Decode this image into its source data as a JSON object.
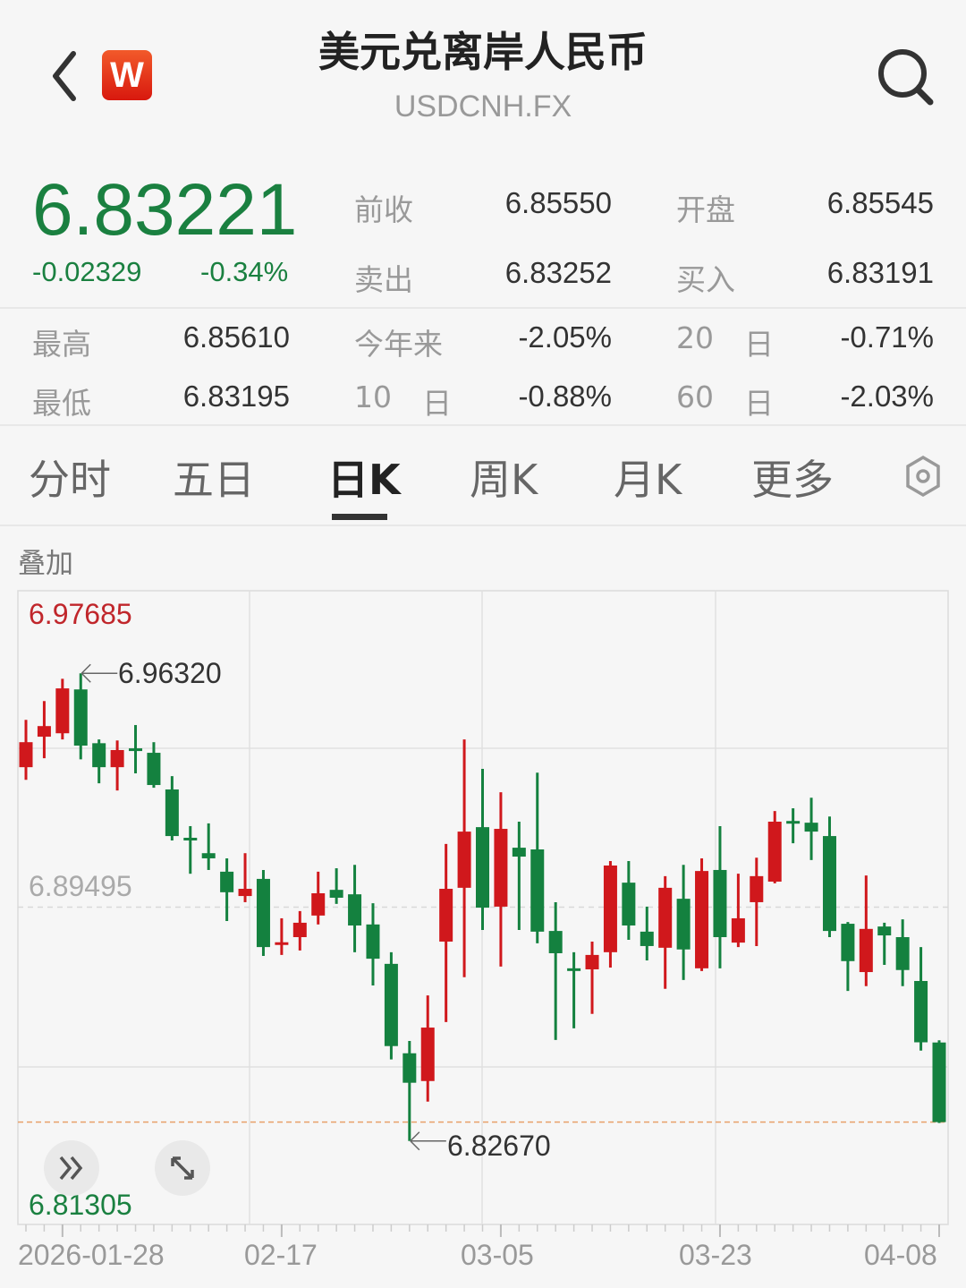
{
  "header": {
    "title": "美元兑离岸人民币",
    "symbol": "USDCNH.FX",
    "logo_text": "W",
    "back_icon": "chevron-left-icon",
    "search_icon": "search-icon"
  },
  "quote": {
    "last": "6.83221",
    "change": "-0.02329",
    "change_pct": "-0.34%",
    "prev_close_label": "前收",
    "prev_close": "6.85550",
    "open_label": "开盘",
    "open": "6.85545",
    "ask_label": "卖出",
    "ask": "6.83252",
    "bid_label": "买入",
    "bid": "6.83191",
    "high_label": "最高",
    "high": "6.85610",
    "low_label": "最低",
    "low": "6.83195",
    "ytd_label": "今年来",
    "ytd": "-2.05%",
    "d10_num": "10",
    "d10_unit": "日",
    "d10": "-0.88%",
    "d20_num": "20",
    "d20_unit": "日",
    "d20": "-0.71%",
    "d60_num": "60",
    "d60_unit": "日",
    "d60": "-2.03%"
  },
  "tabs": [
    {
      "label": "分时",
      "active": false
    },
    {
      "label": "五日",
      "active": false
    },
    {
      "label": "日K",
      "active": true
    },
    {
      "label": "周K",
      "active": false
    },
    {
      "label": "月K",
      "active": false
    },
    {
      "label": "更多",
      "active": false
    }
  ],
  "settings_icon": "hexagon-settings-icon",
  "overlay_label": "叠加",
  "colors": {
    "up": "#d0181c",
    "down": "#14813f",
    "price_green": "#1a8040",
    "ymax_red": "#c0262b"
  },
  "chart_data": {
    "type": "candlestick",
    "y_max_label": "6.97685",
    "y_mid_label": "6.89495",
    "y_min_label": "6.81305",
    "ylim": [
      6.81305,
      6.97685
    ],
    "grid": true,
    "current_price_line": 6.83221,
    "high_annotation": {
      "label": "6.96320",
      "index": 3,
      "value": 6.9632
    },
    "low_annotation": {
      "label": "6.82670",
      "index": 21,
      "value": 6.8267
    },
    "x_ticks": [
      {
        "index": 2,
        "label": "2026-01-28"
      },
      {
        "index": 14,
        "label": "02-17"
      },
      {
        "index": 26,
        "label": "03-05"
      },
      {
        "index": 38,
        "label": "03-23"
      },
      {
        "index": 50,
        "label": "04-08"
      }
    ],
    "ohlc": [
      [
        6.9358,
        6.9496,
        6.9321,
        6.9431
      ],
      [
        6.9447,
        6.9551,
        6.9384,
        6.9478
      ],
      [
        6.9457,
        6.9616,
        6.9439,
        6.9588
      ],
      [
        6.9585,
        6.9632,
        6.9381,
        6.9421
      ],
      [
        6.9428,
        6.9439,
        6.9311,
        6.9358
      ],
      [
        6.9358,
        6.9436,
        6.929,
        6.9408
      ],
      [
        6.9413,
        6.9481,
        6.934,
        6.9411
      ],
      [
        6.94,
        6.9431,
        6.9298,
        6.9306
      ],
      [
        6.9293,
        6.9332,
        6.9144,
        6.9157
      ],
      [
        6.9152,
        6.9186,
        6.9047,
        6.915
      ],
      [
        6.9107,
        6.9194,
        6.9058,
        6.9092
      ],
      [
        6.9053,
        6.9092,
        6.8909,
        6.8993
      ],
      [
        6.8982,
        6.9107,
        6.8964,
        6.9003
      ],
      [
        6.9032,
        6.9058,
        6.8807,
        6.8833
      ],
      [
        6.8844,
        6.8917,
        6.881,
        6.8847
      ],
      [
        6.8862,
        6.8938,
        6.8823,
        6.8904
      ],
      [
        6.8925,
        6.9053,
        6.8899,
        6.899
      ],
      [
        6.9,
        6.9063,
        6.8959,
        6.8977
      ],
      [
        6.8987,
        6.9073,
        6.8818,
        6.8896
      ],
      [
        6.8899,
        6.8961,
        6.8721,
        6.8799
      ],
      [
        6.8784,
        6.8818,
        6.8505,
        6.8544
      ],
      [
        6.8523,
        6.8559,
        6.8267,
        6.8437
      ],
      [
        6.8442,
        6.8692,
        6.8382,
        6.8598
      ],
      [
        6.8849,
        6.9134,
        6.8614,
        6.9003
      ],
      [
        6.9006,
        6.9439,
        6.8745,
        6.917
      ],
      [
        6.9183,
        6.9353,
        6.8883,
        6.8948
      ],
      [
        6.8951,
        6.9285,
        6.8776,
        6.9178
      ],
      [
        6.9123,
        6.9199,
        6.8883,
        6.9097
      ],
      [
        6.9118,
        6.9342,
        6.8844,
        6.8878
      ],
      [
        6.888,
        6.8964,
        6.8562,
        6.8815
      ],
      [
        6.8771,
        6.8818,
        6.8596,
        6.8769
      ],
      [
        6.8768,
        6.8849,
        6.8638,
        6.881
      ],
      [
        6.8818,
        6.9084,
        6.8773,
        6.9071
      ],
      [
        6.9021,
        6.9084,
        6.8854,
        6.8896
      ],
      [
        6.8878,
        6.8951,
        6.8794,
        6.8836
      ],
      [
        6.8831,
        6.904,
        6.8711,
        6.9006
      ],
      [
        6.8974,
        6.9073,
        6.8737,
        6.8826
      ],
      [
        6.8771,
        6.9092,
        6.8763,
        6.9055
      ],
      [
        6.9058,
        6.9186,
        6.8771,
        6.8862
      ],
      [
        6.8846,
        6.9047,
        6.8833,
        6.8917
      ],
      [
        6.8964,
        6.9094,
        6.8836,
        6.904
      ],
      [
        6.9024,
        6.923,
        6.9019,
        6.9199
      ],
      [
        6.9201,
        6.9238,
        6.9136,
        6.9199
      ],
      [
        6.9196,
        6.9269,
        6.9087,
        6.917
      ],
      [
        6.9157,
        6.9214,
        6.8862,
        6.888
      ],
      [
        6.8901,
        6.8906,
        6.8705,
        6.8792
      ],
      [
        6.876,
        6.9042,
        6.8719,
        6.8886
      ],
      [
        6.8893,
        6.8904,
        6.8781,
        6.8867
      ],
      [
        6.8862,
        6.8914,
        6.8719,
        6.8766
      ],
      [
        6.8734,
        6.8833,
        6.8531,
        6.8555
      ],
      [
        6.85545,
        6.8561,
        6.83195,
        6.83221
      ]
    ]
  },
  "chart_controls": {
    "expand_left_icon": "double-chevron-right-icon",
    "fullscreen_icon": "expand-arrows-icon"
  }
}
